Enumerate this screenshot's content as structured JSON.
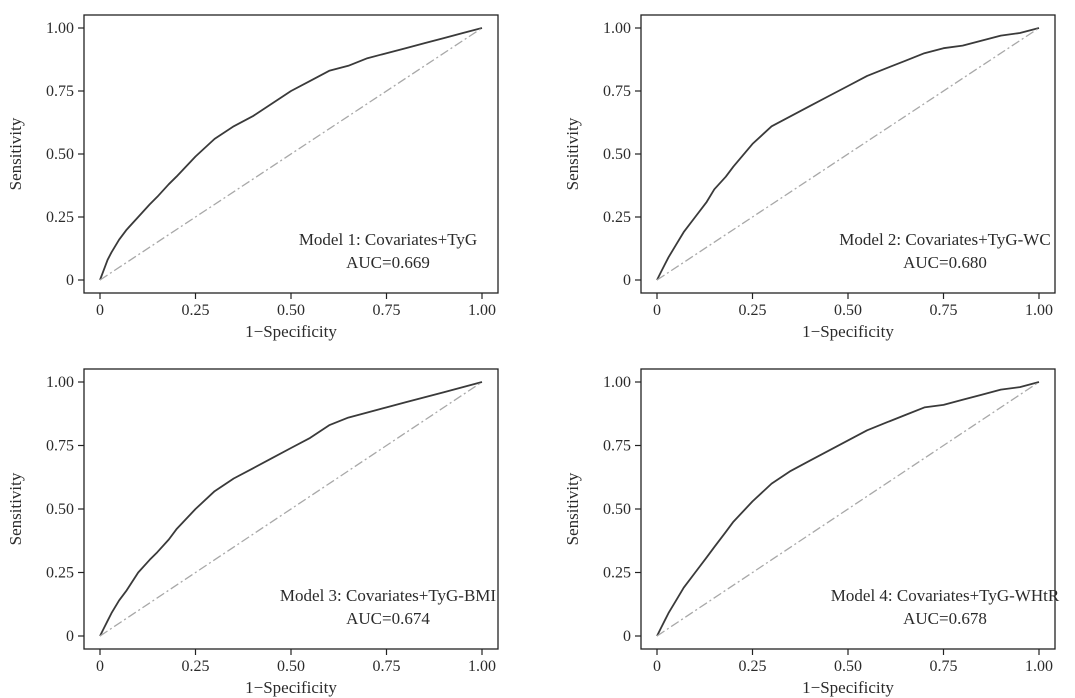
{
  "colors": {
    "curve": "#3a3a3a",
    "reference_line": "#a8a8a8",
    "frame": "#222222",
    "text": "#2b2b2b"
  },
  "chart_data": [
    {
      "type": "line",
      "xlabel": "1−Specificity",
      "ylabel": "Sensitivity",
      "xlim": [
        0,
        1
      ],
      "ylim": [
        0,
        1
      ],
      "x_ticks": [
        "0",
        "0.25",
        "0.50",
        "0.75",
        "1.00"
      ],
      "y_ticks": [
        "0",
        "0.25",
        "0.50",
        "0.75",
        "1.00"
      ],
      "annotation": [
        "Model 1: Covariates+TyG",
        "AUC=0.669"
      ],
      "grid": false,
      "series": [
        {
          "role": "roc",
          "x": [
            0,
            0.01,
            0.02,
            0.03,
            0.05,
            0.07,
            0.1,
            0.13,
            0.15,
            0.18,
            0.2,
            0.25,
            0.3,
            0.35,
            0.4,
            0.45,
            0.5,
            0.55,
            0.6,
            0.65,
            0.7,
            0.75,
            0.8,
            0.85,
            0.9,
            0.95,
            1.0
          ],
          "y": [
            0,
            0.04,
            0.08,
            0.11,
            0.16,
            0.2,
            0.25,
            0.3,
            0.33,
            0.38,
            0.41,
            0.49,
            0.56,
            0.61,
            0.65,
            0.7,
            0.75,
            0.79,
            0.83,
            0.85,
            0.88,
            0.9,
            0.92,
            0.94,
            0.96,
            0.98,
            1.0
          ]
        },
        {
          "role": "reference",
          "x": [
            0,
            1
          ],
          "y": [
            0,
            1
          ]
        }
      ]
    },
    {
      "type": "line",
      "xlabel": "1−Specificity",
      "ylabel": "Sensitivity",
      "xlim": [
        0,
        1
      ],
      "ylim": [
        0,
        1
      ],
      "x_ticks": [
        "0",
        "0.25",
        "0.50",
        "0.75",
        "1.00"
      ],
      "y_ticks": [
        "0",
        "0.25",
        "0.50",
        "0.75",
        "1.00"
      ],
      "annotation": [
        "Model 2: Covariates+TyG-WC",
        "AUC=0.680"
      ],
      "grid": false,
      "series": [
        {
          "role": "roc",
          "x": [
            0,
            0.01,
            0.02,
            0.03,
            0.05,
            0.07,
            0.1,
            0.13,
            0.15,
            0.18,
            0.2,
            0.25,
            0.3,
            0.35,
            0.4,
            0.45,
            0.5,
            0.55,
            0.6,
            0.65,
            0.7,
            0.75,
            0.8,
            0.85,
            0.9,
            0.95,
            1.0
          ],
          "y": [
            0,
            0.03,
            0.06,
            0.09,
            0.14,
            0.19,
            0.25,
            0.31,
            0.36,
            0.41,
            0.45,
            0.54,
            0.61,
            0.65,
            0.69,
            0.73,
            0.77,
            0.81,
            0.84,
            0.87,
            0.9,
            0.92,
            0.93,
            0.95,
            0.97,
            0.98,
            1.0
          ]
        },
        {
          "role": "reference",
          "x": [
            0,
            1
          ],
          "y": [
            0,
            1
          ]
        }
      ]
    },
    {
      "type": "line",
      "xlabel": "1−Specificity",
      "ylabel": "Sensitivity",
      "xlim": [
        0,
        1
      ],
      "ylim": [
        0,
        1
      ],
      "x_ticks": [
        "0",
        "0.25",
        "0.50",
        "0.75",
        "1.00"
      ],
      "y_ticks": [
        "0",
        "0.25",
        "0.50",
        "0.75",
        "1.00"
      ],
      "annotation": [
        "Model 3: Covariates+TyG-BMI",
        "AUC=0.674"
      ],
      "grid": false,
      "series": [
        {
          "role": "roc",
          "x": [
            0,
            0.01,
            0.02,
            0.03,
            0.05,
            0.07,
            0.1,
            0.13,
            0.15,
            0.18,
            0.2,
            0.25,
            0.3,
            0.35,
            0.4,
            0.45,
            0.5,
            0.55,
            0.6,
            0.65,
            0.7,
            0.75,
            0.8,
            0.85,
            0.9,
            0.95,
            1.0
          ],
          "y": [
            0,
            0.03,
            0.06,
            0.09,
            0.14,
            0.18,
            0.25,
            0.3,
            0.33,
            0.38,
            0.42,
            0.5,
            0.57,
            0.62,
            0.66,
            0.7,
            0.74,
            0.78,
            0.83,
            0.86,
            0.88,
            0.9,
            0.92,
            0.94,
            0.96,
            0.98,
            1.0
          ]
        },
        {
          "role": "reference",
          "x": [
            0,
            1
          ],
          "y": [
            0,
            1
          ]
        }
      ]
    },
    {
      "type": "line",
      "xlabel": "1−Specificity",
      "ylabel": "Sensitivity",
      "xlim": [
        0,
        1
      ],
      "ylim": [
        0,
        1
      ],
      "x_ticks": [
        "0",
        "0.25",
        "0.50",
        "0.75",
        "1.00"
      ],
      "y_ticks": [
        "0",
        "0.25",
        "0.50",
        "0.75",
        "1.00"
      ],
      "annotation": [
        "Model 4: Covariates+TyG-WHtR",
        "AUC=0.678"
      ],
      "grid": false,
      "series": [
        {
          "role": "roc",
          "x": [
            0,
            0.01,
            0.02,
            0.03,
            0.05,
            0.07,
            0.1,
            0.13,
            0.15,
            0.18,
            0.2,
            0.25,
            0.3,
            0.35,
            0.4,
            0.45,
            0.5,
            0.55,
            0.6,
            0.65,
            0.7,
            0.75,
            0.8,
            0.85,
            0.9,
            0.95,
            1.0
          ],
          "y": [
            0,
            0.03,
            0.06,
            0.09,
            0.14,
            0.19,
            0.25,
            0.31,
            0.35,
            0.41,
            0.45,
            0.53,
            0.6,
            0.65,
            0.69,
            0.73,
            0.77,
            0.81,
            0.84,
            0.87,
            0.9,
            0.91,
            0.93,
            0.95,
            0.97,
            0.98,
            1.0
          ]
        },
        {
          "role": "reference",
          "x": [
            0,
            1
          ],
          "y": [
            0,
            1
          ]
        }
      ]
    }
  ]
}
